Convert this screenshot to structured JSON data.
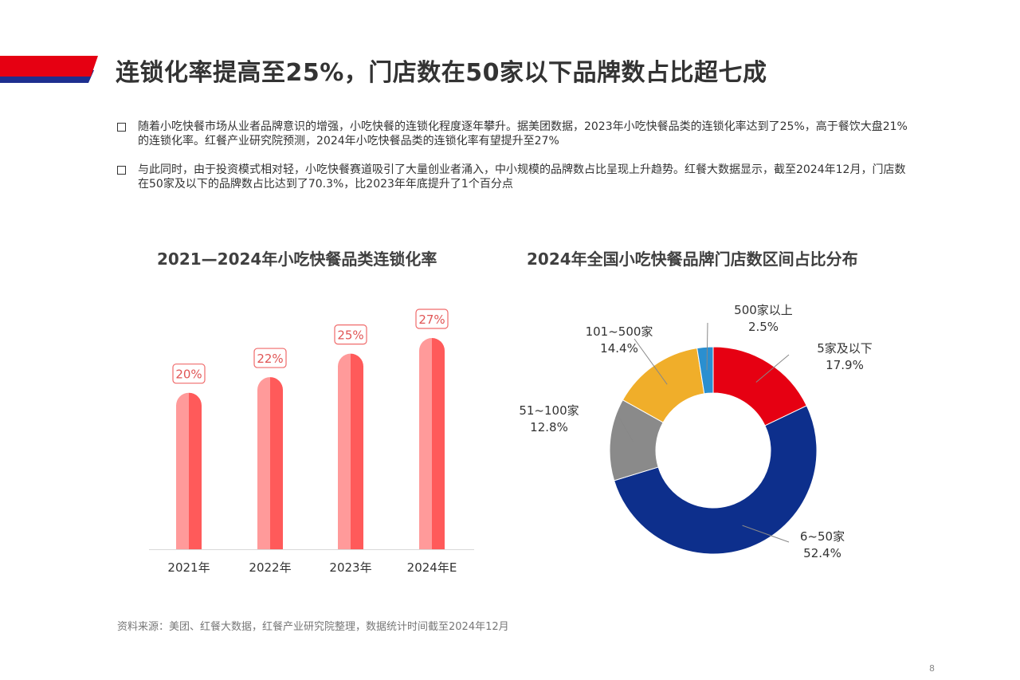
{
  "title": "连锁化率提高至25%，门店数在50家以下品牌数占比超七成",
  "bullets": [
    "随着小吃快餐市场从业者品牌意识的增强，小吃快餐的连锁化程度逐年攀升。据美团数据，2023年小吃快餐品类的连锁化率达到了25%，高于餐饮大盘21%的连锁化率。红餐产业研究院预测，2024年小吃快餐品类的连锁化率有望提升至27%",
    "与此同时，由于投资模式相对轻，小吃快餐赛道吸引了大量创业者涌入，中小规模的品牌数占比呈现上升趋势。红餐大数据显示，截至2024年12月，门店数在50家及以下的品牌数占比达到了70.3%，比2023年年底提升了1个百分点"
  ],
  "source": "资料来源：美团、红餐大数据，红餐产业研究院整理，数据统计时间截至2024年12月",
  "page_number": "8",
  "colors": {
    "header_red": "#e60012",
    "header_blue": "#1d2f8f",
    "bar_light": "#ff9a9a",
    "bar_dark": "#ff5a5a"
  },
  "chart_data": [
    {
      "type": "bar",
      "title": "2021—2024年小吃快餐品类连锁化率",
      "categories": [
        "2021年",
        "2022年",
        "2023年",
        "2024年E"
      ],
      "values": [
        20,
        22,
        25,
        27
      ],
      "data_labels": [
        "20%",
        "22%",
        "25%",
        "27%"
      ],
      "unit": "%",
      "grid": false
    },
    {
      "type": "pie",
      "subtype": "donut",
      "title": "2024年全国小吃快餐品牌门店数区间占比分布",
      "slices": [
        {
          "label": "5家及以下",
          "value": 17.9,
          "value_label": "17.9%",
          "color": "#e60012"
        },
        {
          "label": "6~50家",
          "value": 52.4,
          "value_label": "52.4%",
          "color": "#0d2f8c"
        },
        {
          "label": "51~100家",
          "value": 12.8,
          "value_label": "12.8%",
          "color": "#8a8a8a"
        },
        {
          "label": "101~500家",
          "value": 14.4,
          "value_label": "14.4%",
          "color": "#f0ae2a"
        },
        {
          "label": "500家以上",
          "value": 2.5,
          "value_label": "2.5%",
          "color": "#2a8fd0"
        }
      ]
    }
  ]
}
